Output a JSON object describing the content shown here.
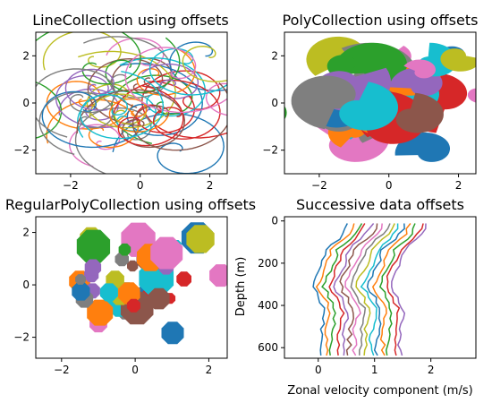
{
  "figure": {
    "panels": [
      {
        "title": "LineCollection using offsets",
        "xticks": [
          "−2",
          "0",
          "2"
        ],
        "yticks": [
          "2",
          "0",
          "−2"
        ]
      },
      {
        "title": "PolyCollection using offsets",
        "xticks": [
          "−2",
          "0",
          "2"
        ],
        "yticks": [
          "2",
          "0",
          "−2"
        ]
      },
      {
        "title": "RegularPolyCollection using offsets",
        "xticks": [
          "−2",
          "0",
          "2"
        ],
        "yticks": [
          "2",
          "0",
          "−2"
        ]
      },
      {
        "title": "Successive data offsets",
        "xlabel": "Zonal velocity component (m/s)",
        "ylabel": "Depth (m)",
        "xticks": [
          "0",
          "1",
          "2"
        ],
        "yticks": [
          "0",
          "200",
          "400",
          "600"
        ]
      }
    ]
  },
  "chart_data": [
    {
      "type": "line",
      "title": "LineCollection using offsets",
      "xlim": [
        -3.0,
        2.5
      ],
      "ylim": [
        -3.0,
        3.0
      ],
      "grid": false,
      "description_items": "many spiral curves, tab10 colors, offsets scattered around origin",
      "curve_count": 40
    },
    {
      "type": "scatter",
      "title": "PolyCollection using offsets",
      "xlim": [
        -3.0,
        2.5
      ],
      "ylim": [
        -3.0,
        3.0
      ],
      "grid": false,
      "shape_count": 40
    },
    {
      "type": "scatter",
      "title": "RegularPolyCollection using offsets",
      "xlim": [
        -2.7,
        2.5
      ],
      "ylim": [
        -2.8,
        2.6
      ],
      "grid": false,
      "shape_count": 40
    },
    {
      "type": "line",
      "title": "Successive data offsets",
      "xlabel": "Zonal velocity component (m/s)",
      "ylabel": "Depth (m)",
      "xlim": [
        -0.6,
        2.8
      ],
      "ylim": [
        650,
        -20
      ],
      "yinverted": true,
      "series_count": 15,
      "x_offset_step": 0.1,
      "depth_values": [
        0,
        25,
        50,
        75,
        100,
        125,
        150,
        175,
        200,
        225,
        250,
        275,
        300,
        325,
        350,
        375,
        400,
        425,
        450,
        475,
        500,
        525,
        550,
        575,
        600,
        625
      ],
      "base_profile": [
        0.55,
        0.5,
        0.45,
        0.35,
        0.25,
        0.15,
        0.12,
        0.08,
        0.05,
        0.0,
        -0.05,
        -0.08,
        -0.1,
        -0.05,
        0.0,
        0.05,
        0.1,
        0.12,
        0.1,
        0.08,
        0.05,
        0.06,
        0.04,
        0.05,
        0.03,
        0.05
      ]
    }
  ],
  "colors": [
    "#1f77b4",
    "#ff7f0e",
    "#2ca02c",
    "#d62728",
    "#9467bd",
    "#8c564b",
    "#e377c2",
    "#7f7f7f",
    "#bcbd22",
    "#17becf"
  ]
}
